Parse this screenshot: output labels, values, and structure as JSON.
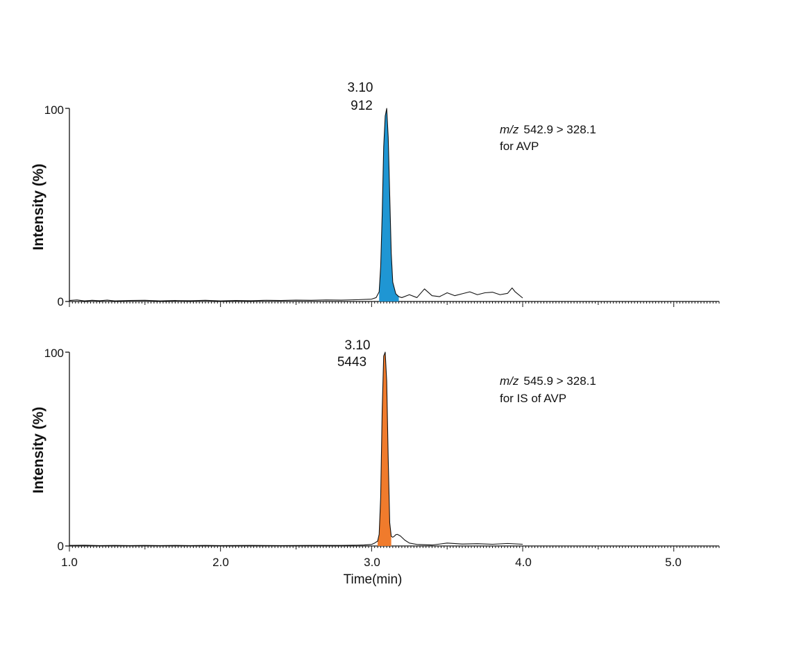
{
  "chart_data": [
    {
      "type": "line",
      "ylabel": "Intensity (%)",
      "xlabel": "",
      "xlim": [
        1.0,
        5.3
      ],
      "ylim": [
        0,
        100
      ],
      "y_ticks": [
        "0",
        "100"
      ],
      "x_tick_labels_shown": false,
      "grid": false,
      "peak": {
        "rt": 3.1,
        "rt_label": "3.10",
        "intensity_label": "912",
        "fill_color": "#1f96d3",
        "fill_range": [
          3.05,
          3.18
        ]
      },
      "transition": {
        "prefix": "m/z",
        "text": "542.9 > 328.1",
        "compound": "for AVP"
      },
      "series": [
        {
          "x": [
            1.0,
            1.05,
            1.1,
            1.15,
            1.2,
            1.25,
            1.3,
            1.4,
            1.5,
            1.6,
            1.7,
            1.8,
            1.9,
            2.0,
            2.1,
            2.2,
            2.3,
            2.4,
            2.5,
            2.6,
            2.7,
            2.8,
            2.9,
            3.0,
            3.03,
            3.05,
            3.06,
            3.07,
            3.08,
            3.09,
            3.1,
            3.11,
            3.12,
            3.13,
            3.14,
            3.16,
            3.18,
            3.2,
            3.25,
            3.3,
            3.35,
            3.4,
            3.45,
            3.5,
            3.55,
            3.6,
            3.65,
            3.7,
            3.75,
            3.8,
            3.85,
            3.9,
            3.93,
            3.95,
            4.0
          ],
          "y": [
            0.5,
            0.8,
            0.3,
            0.6,
            0.4,
            0.7,
            0.3,
            0.5,
            0.6,
            0.3,
            0.5,
            0.4,
            0.6,
            0.3,
            0.5,
            0.4,
            0.6,
            0.5,
            0.7,
            0.6,
            0.8,
            0.7,
            0.9,
            1.2,
            2.0,
            5.0,
            18.0,
            45.0,
            80.0,
            96.0,
            100.0,
            85.0,
            55.0,
            25.0,
            10.0,
            4.0,
            2.5,
            2.0,
            3.5,
            2.0,
            6.5,
            3.0,
            2.5,
            4.5,
            3.0,
            4.0,
            5.0,
            3.5,
            4.5,
            4.8,
            3.5,
            4.2,
            7.0,
            5.0,
            1.8
          ]
        }
      ]
    },
    {
      "type": "line",
      "ylabel": "Intensity (%)",
      "xlabel": "Time(min)",
      "xlim": [
        1.0,
        5.3
      ],
      "ylim": [
        0,
        100
      ],
      "y_ticks": [
        "0",
        "100"
      ],
      "x_ticks": [
        "1.0",
        "2.0",
        "3.0",
        "4.0",
        "5.0"
      ],
      "grid": false,
      "peak": {
        "rt": 3.1,
        "rt_label": "3.10",
        "intensity_label": "5443",
        "fill_color": "#f07b2c",
        "fill_range": [
          3.04,
          3.13
        ]
      },
      "transition": {
        "prefix": "m/z",
        "text": "545.9 > 328.1",
        "compound": "for IS of AVP"
      },
      "series": [
        {
          "x": [
            1.0,
            1.1,
            1.2,
            1.3,
            1.4,
            1.5,
            1.6,
            1.7,
            1.8,
            1.9,
            2.0,
            2.2,
            2.4,
            2.6,
            2.8,
            2.9,
            2.95,
            3.0,
            3.02,
            3.04,
            3.05,
            3.06,
            3.07,
            3.08,
            3.09,
            3.1,
            3.11,
            3.12,
            3.13,
            3.14,
            3.15,
            3.16,
            3.17,
            3.19,
            3.22,
            3.25,
            3.3,
            3.4,
            3.5,
            3.6,
            3.7,
            3.8,
            3.9,
            4.0
          ],
          "y": [
            0.3,
            0.4,
            0.2,
            0.3,
            0.2,
            0.3,
            0.2,
            0.3,
            0.2,
            0.3,
            0.2,
            0.3,
            0.2,
            0.3,
            0.3,
            0.4,
            0.5,
            0.8,
            1.5,
            2.5,
            6.0,
            25.0,
            70.0,
            98.0,
            100.0,
            85.0,
            45.0,
            12.0,
            5.0,
            4.5,
            5.0,
            5.8,
            6.0,
            5.2,
            3.0,
            1.5,
            0.8,
            0.5,
            1.5,
            1.0,
            1.2,
            0.9,
            1.3,
            0.9
          ]
        }
      ]
    }
  ]
}
